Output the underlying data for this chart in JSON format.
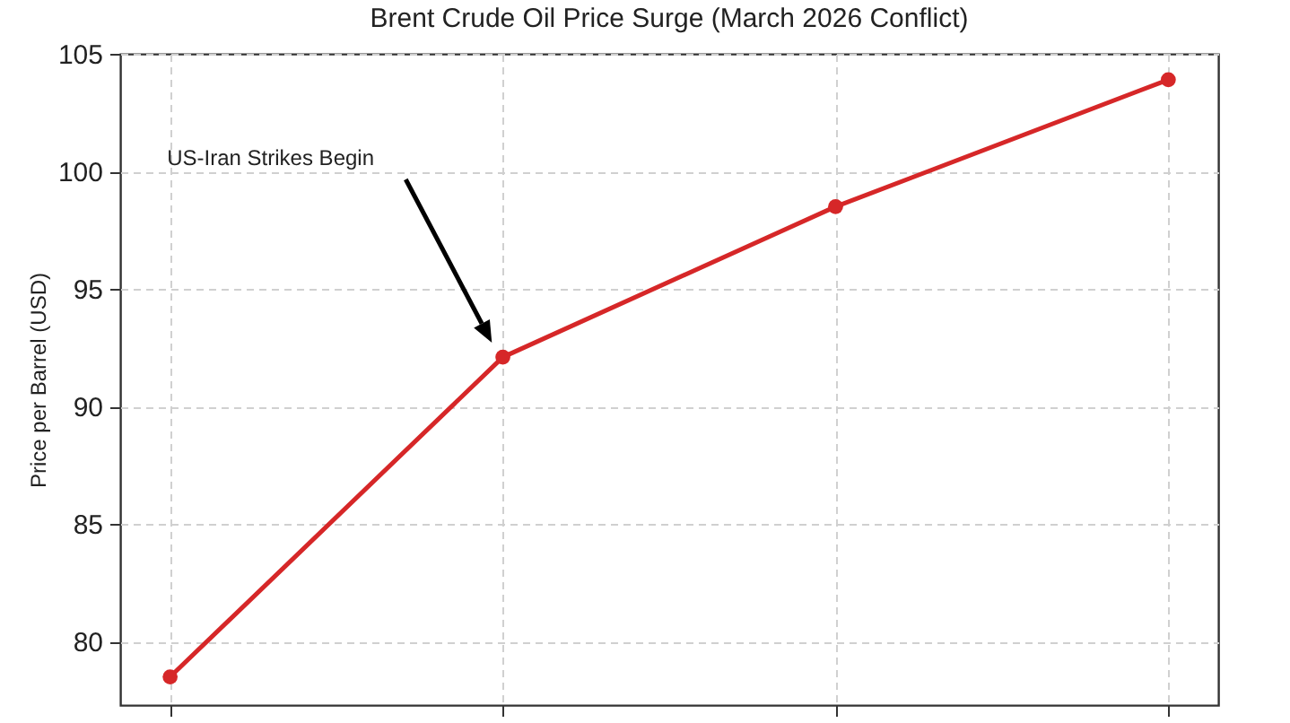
{
  "chart_data": {
    "type": "line",
    "title": "Brent Crude Oil Price Surge (March 2026 Conflict)",
    "ylabel": "Price per Barrel (USD)",
    "categories": [
      null,
      null,
      null,
      null
    ],
    "series": [
      {
        "color": "#d62728",
        "values": [
          78.5,
          92.1,
          98.5,
          103.9
        ]
      }
    ],
    "ylim": [
      77.3,
      105
    ],
    "yticks": [
      80,
      85,
      90,
      95,
      100,
      105
    ],
    "annotations": [
      "US-Iran Strikes Begin"
    ],
    "grid": true,
    "marker": "circle",
    "line_style": "solid",
    "tick_labels": "y"
  }
}
